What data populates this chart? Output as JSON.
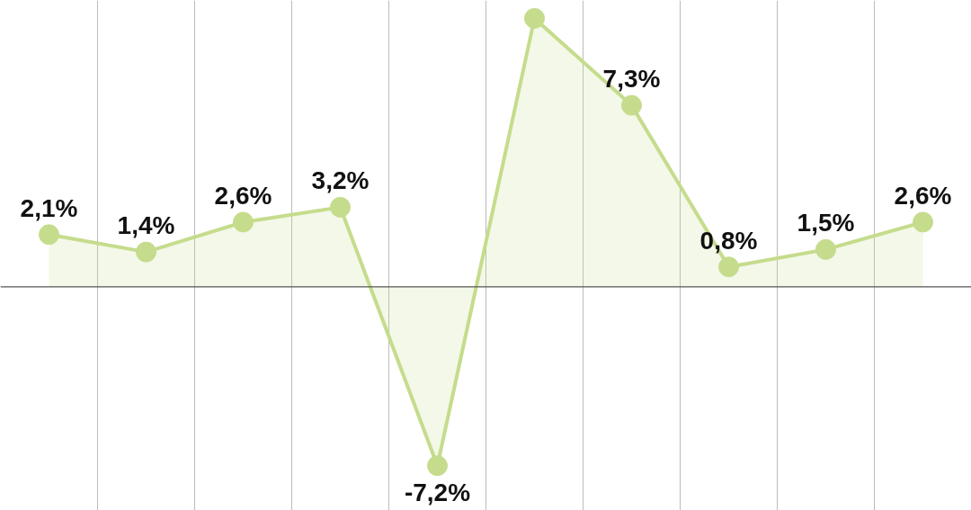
{
  "chart_data": {
    "type": "area",
    "categories": [
      null,
      null,
      null,
      null,
      null,
      null,
      null,
      null,
      null,
      null
    ],
    "series": [
      {
        "color": "#c5dc8c",
        "values": [
          2.1,
          1.4,
          2.6,
          3.2,
          -7.2,
          10.8,
          7.3,
          0.8,
          1.5,
          2.6
        ],
        "value_labels": [
          "2,1%",
          "1,4%",
          "2,6%",
          "3,2%",
          "-7,2%",
          null,
          "7,3%",
          "0,8%",
          "1,5%",
          "2,6%"
        ]
      }
    ],
    "marker": "circle",
    "grid": "x",
    "ref_lines": [
      {
        "axis": "y",
        "value": 0,
        "color": "#555555"
      }
    ]
  }
}
